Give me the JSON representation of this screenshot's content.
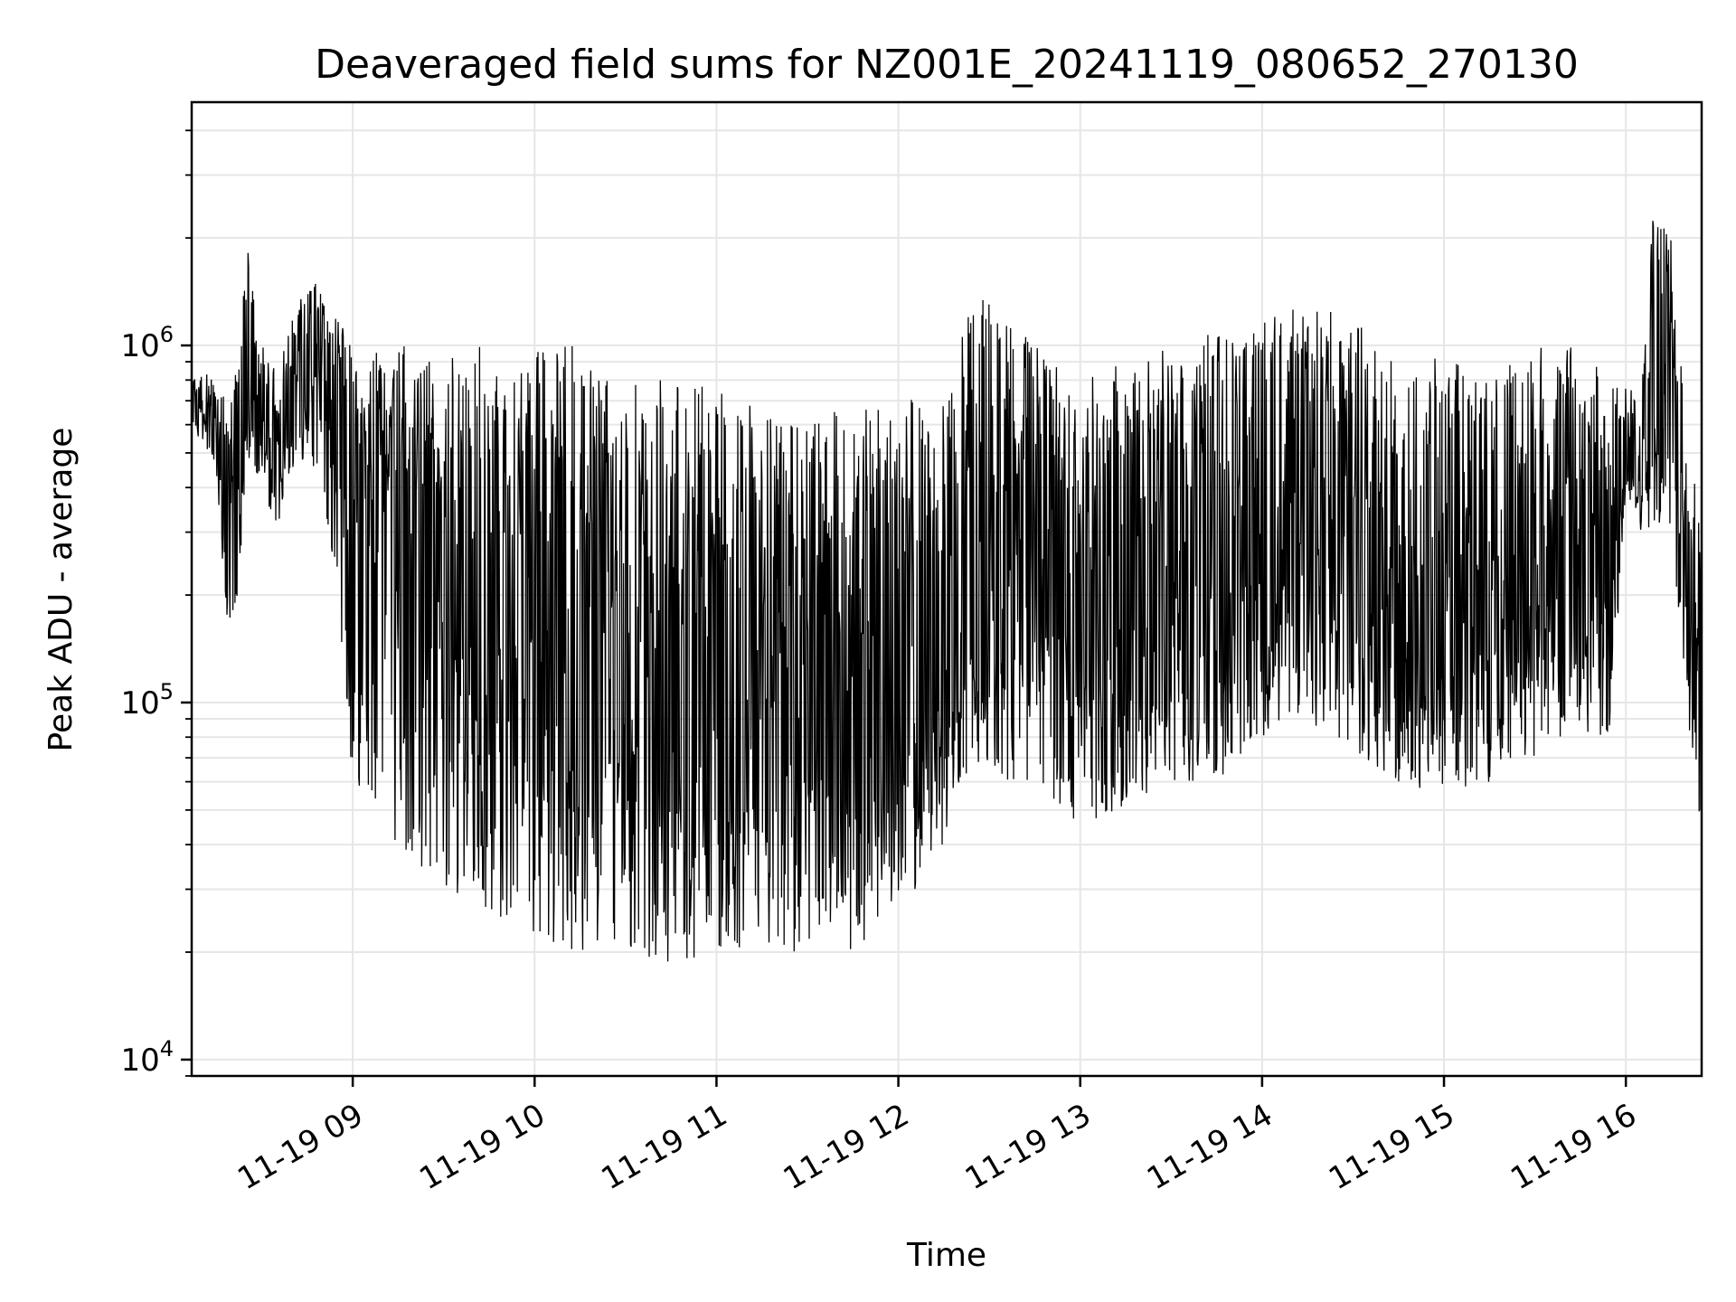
{
  "chart_data": {
    "type": "line",
    "title": "Deaveraged field sums for NZ001E_20241119_080652_270130",
    "xlabel": "Time",
    "ylabel": "Peak ADU - average",
    "y_scale": "log",
    "ylim": [
      9000,
      4800000
    ],
    "xlim": [
      "2024-11-19T08:06:52",
      "2024-11-19T16:25:00"
    ],
    "grid": true,
    "x_ticks": [
      "11-19 09",
      "11-19 10",
      "11-19 11",
      "11-19 12",
      "11-19 13",
      "11-19 14",
      "11-19 15",
      "11-19 16"
    ],
    "y_ticks": [
      {
        "base": "10",
        "exp": "4",
        "value": 10000
      },
      {
        "base": "10",
        "exp": "5",
        "value": 100000
      },
      {
        "base": "10",
        "exp": "6",
        "value": 1000000
      }
    ],
    "series_color": "#000000",
    "envelope": {
      "description_time": [
        "08:07",
        "08:10",
        "08:15",
        "08:20",
        "08:25",
        "08:30",
        "08:35",
        "08:40",
        "08:45",
        "08:50",
        "08:55",
        "09:00",
        "09:15",
        "09:30",
        "09:45",
        "10:00",
        "10:15",
        "10:30",
        "10:45",
        "11:00",
        "11:15",
        "11:30",
        "11:45",
        "12:00",
        "12:15",
        "12:20",
        "12:30",
        "12:45",
        "13:00",
        "13:15",
        "13:30",
        "13:45",
        "14:00",
        "14:15",
        "14:30",
        "14:45",
        "15:00",
        "15:15",
        "15:30",
        "15:45",
        "15:55",
        "16:00",
        "16:05",
        "16:10",
        "16:15",
        "16:20",
        "16:25"
      ],
      "center": [
        650000,
        700000,
        600000,
        300000,
        700000,
        600000,
        500000,
        700000,
        800000,
        900000,
        700000,
        500000,
        300000,
        250000,
        200000,
        150000,
        150000,
        130000,
        120000,
        120000,
        110000,
        110000,
        100000,
        110000,
        130000,
        200000,
        300000,
        250000,
        160000,
        180000,
        200000,
        220000,
        300000,
        350000,
        250000,
        200000,
        150000,
        180000,
        220000,
        250000,
        250000,
        500000,
        450000,
        900000,
        700000,
        200000,
        50000
      ],
      "low": [
        550000,
        550000,
        450000,
        100000,
        500000,
        400000,
        300000,
        400000,
        500000,
        400000,
        200000,
        60000,
        40000,
        30000,
        25000,
        22000,
        20000,
        20000,
        18000,
        20000,
        20000,
        20000,
        20000,
        25000,
        40000,
        60000,
        60000,
        60000,
        45000,
        50000,
        60000,
        60000,
        80000,
        90000,
        70000,
        60000,
        55000,
        60000,
        70000,
        80000,
        80000,
        400000,
        300000,
        300000,
        300000,
        100000,
        40000
      ],
      "high": [
        800000,
        900000,
        800000,
        700000,
        2000000,
        1000000,
        900000,
        1200000,
        1500000,
        1500000,
        1200000,
        1000000,
        1000000,
        1000000,
        1000000,
        1000000,
        1000000,
        800000,
        800000,
        800000,
        700000,
        700000,
        650000,
        700000,
        800000,
        1200000,
        1400000,
        1000000,
        800000,
        900000,
        1000000,
        1100000,
        1200000,
        1300000,
        1200000,
        1000000,
        900000,
        900000,
        1000000,
        1000000,
        900000,
        800000,
        800000,
        3000000,
        2000000,
        600000,
        300000
      ]
    }
  }
}
